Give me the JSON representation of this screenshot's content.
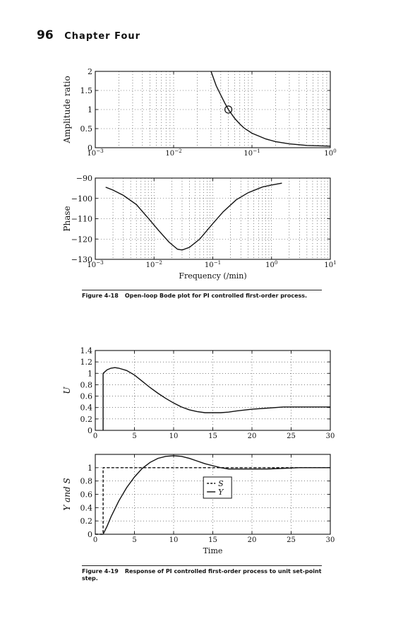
{
  "page": {
    "number": "96",
    "chapter": "Chapter Four"
  },
  "figures": [
    {
      "label": "Figure 4-18",
      "caption": "Open-loop Bode plot for PI controlled first-order process."
    },
    {
      "label": "Figure 4-19",
      "caption": "Response of PI controlled first-order process to unit set-point step."
    }
  ],
  "chart_data": [
    {
      "type": "line",
      "xscale": "log",
      "xlabel": "",
      "ylabel": "Amplitude ratio",
      "xlim": [
        0.001,
        1
      ],
      "ylim": [
        0,
        2
      ],
      "grid": true,
      "xticks": [
        0.001,
        0.01,
        0.1,
        1
      ],
      "xticklabels": [
        "10^-3",
        "10^-2",
        "10^-1",
        "10^0"
      ],
      "yticks": [
        0,
        0.5,
        1,
        1.5,
        2
      ],
      "yticklabels": [
        "0",
        "0.5",
        "1",
        "1.5",
        "2"
      ],
      "series": [
        {
          "x": [
            0.03,
            0.035,
            0.04,
            0.045,
            0.05,
            0.06,
            0.07,
            0.08,
            0.1,
            0.15,
            0.2,
            0.3,
            0.5,
            0.7,
            1.0
          ],
          "y": [
            2.0,
            1.62,
            1.38,
            1.17,
            1.0,
            0.77,
            0.62,
            0.51,
            0.38,
            0.23,
            0.16,
            0.1,
            0.06,
            0.05,
            0.04
          ]
        }
      ],
      "marker": {
        "x": 0.05,
        "y": 1.0
      }
    },
    {
      "type": "line",
      "xscale": "log",
      "xlabel": "Frequency (/min)",
      "ylabel": "Phase",
      "xlim": [
        0.001,
        10
      ],
      "ylim": [
        -130,
        -90
      ],
      "grid": true,
      "xticks": [
        0.001,
        0.01,
        0.1,
        1,
        10
      ],
      "xticklabels": [
        "10^-3",
        "10^-2",
        "10^-1",
        "10^0",
        "10^1"
      ],
      "yticks": [
        -130,
        -120,
        -110,
        -100,
        -90
      ],
      "yticklabels": [
        "-130",
        "-120",
        "-110",
        "-100",
        "-90"
      ],
      "series": [
        {
          "x": [
            0.0015,
            0.002,
            0.003,
            0.005,
            0.008,
            0.012,
            0.018,
            0.025,
            0.03,
            0.04,
            0.06,
            0.1,
            0.15,
            0.25,
            0.4,
            0.7,
            1.0,
            1.5
          ],
          "y": [
            -94.5,
            -95.9,
            -98.5,
            -103,
            -109.8,
            -115.8,
            -121.5,
            -125,
            -125.4,
            -124.1,
            -120,
            -112.4,
            -106.6,
            -100.7,
            -97.2,
            -94.4,
            -93.4,
            -92.5
          ]
        }
      ]
    },
    {
      "type": "line",
      "xlabel": "",
      "ylabel": "U",
      "xlim": [
        0,
        30
      ],
      "ylim": [
        0,
        1.4
      ],
      "grid": true,
      "xticks": [
        0,
        5,
        10,
        15,
        20,
        25,
        30
      ],
      "xticklabels": [
        "0",
        "5",
        "10",
        "15",
        "20",
        "25",
        "30"
      ],
      "yticks": [
        0,
        0.2,
        0.4,
        0.6,
        0.8,
        1,
        1.2,
        1.4
      ],
      "yticklabels": [
        "0",
        "0.2",
        "0.4",
        "0.6",
        "0.8",
        "1",
        "1.2",
        "1.4"
      ],
      "series": [
        {
          "x": [
            1,
            1,
            1.5,
            2,
            2.5,
            3,
            4,
            5,
            6,
            7,
            8,
            9,
            10,
            11,
            12,
            13,
            14,
            15,
            16,
            17,
            18,
            20,
            22,
            24,
            26,
            28,
            30
          ],
          "y": [
            0,
            1.0,
            1.06,
            1.09,
            1.1,
            1.09,
            1.05,
            0.97,
            0.86,
            0.75,
            0.65,
            0.56,
            0.48,
            0.41,
            0.36,
            0.33,
            0.31,
            0.31,
            0.31,
            0.32,
            0.34,
            0.37,
            0.39,
            0.41,
            0.41,
            0.41,
            0.41
          ]
        }
      ]
    },
    {
      "type": "line",
      "xlabel": "Time",
      "ylabel": "Y and S",
      "xlim": [
        0,
        30
      ],
      "ylim": [
        0,
        1.2
      ],
      "grid": true,
      "xticks": [
        0,
        5,
        10,
        15,
        20,
        25,
        30
      ],
      "xticklabels": [
        "0",
        "5",
        "10",
        "15",
        "20",
        "25",
        "30"
      ],
      "yticks": [
        0,
        0.2,
        0.4,
        0.6,
        0.8,
        1
      ],
      "yticklabels": [
        "0",
        "0.2",
        "0.4",
        "0.6",
        "0.8",
        "1"
      ],
      "legend": [
        "S",
        "Y"
      ],
      "legend_position": "center-right",
      "series": [
        {
          "name": "S",
          "style": "dashed",
          "x": [
            0,
            1,
            1,
            30
          ],
          "y": [
            0,
            0,
            1,
            1
          ]
        },
        {
          "name": "Y",
          "style": "solid",
          "x": [
            1,
            1.5,
            2,
            3,
            4,
            5,
            6,
            7,
            8,
            9,
            10,
            11,
            12,
            13,
            14,
            15,
            16,
            17,
            18,
            20,
            22,
            24,
            26,
            28,
            30
          ],
          "y": [
            0,
            0.12,
            0.26,
            0.5,
            0.7,
            0.86,
            0.99,
            1.08,
            1.14,
            1.17,
            1.18,
            1.17,
            1.14,
            1.1,
            1.06,
            1.03,
            1.0,
            0.98,
            0.98,
            0.98,
            0.98,
            0.99,
            1.0,
            1.0,
            1.0
          ]
        }
      ]
    }
  ]
}
